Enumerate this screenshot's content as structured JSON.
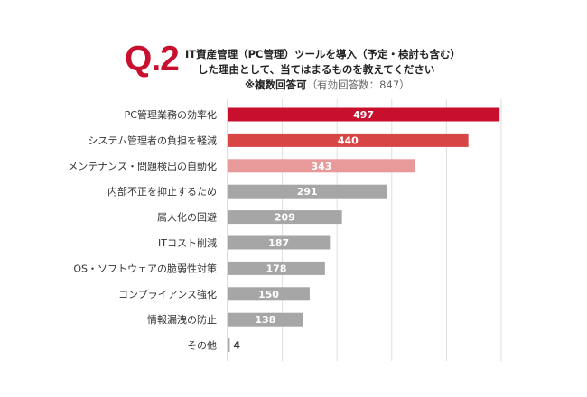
{
  "question": {
    "label": "Q.2",
    "line1": "IT資産管理（PC管理）ツールを導入（予定・検討も含む）",
    "line2": "した理由として、当てはまるものを教えてください",
    "note_strong": "※複数回答可",
    "note_light": "（有効回答数：847）"
  },
  "chart_data": {
    "type": "bar",
    "orientation": "horizontal",
    "categories": [
      "PC管理業務の効率化",
      "システム管理者の負担を軽減",
      "メンテナンス・問題検出の自動化",
      "内部不正を抑止するため",
      "属人化の回避",
      "ITコスト削減",
      "OS・ソフトウェアの脆弱性対策",
      "コンプライアンス強化",
      "情報漏洩の防止",
      "その他"
    ],
    "values": [
      497,
      440,
      343,
      291,
      209,
      187,
      178,
      150,
      138,
      4
    ],
    "bar_colors": [
      "#c8102e",
      "#d84545",
      "#e89a9a",
      "#a6a6a6",
      "#a6a6a6",
      "#a6a6a6",
      "#a6a6a6",
      "#a6a6a6",
      "#a6a6a6",
      "#a6a6a6"
    ],
    "xlim": [
      0,
      500
    ],
    "grid": true
  }
}
